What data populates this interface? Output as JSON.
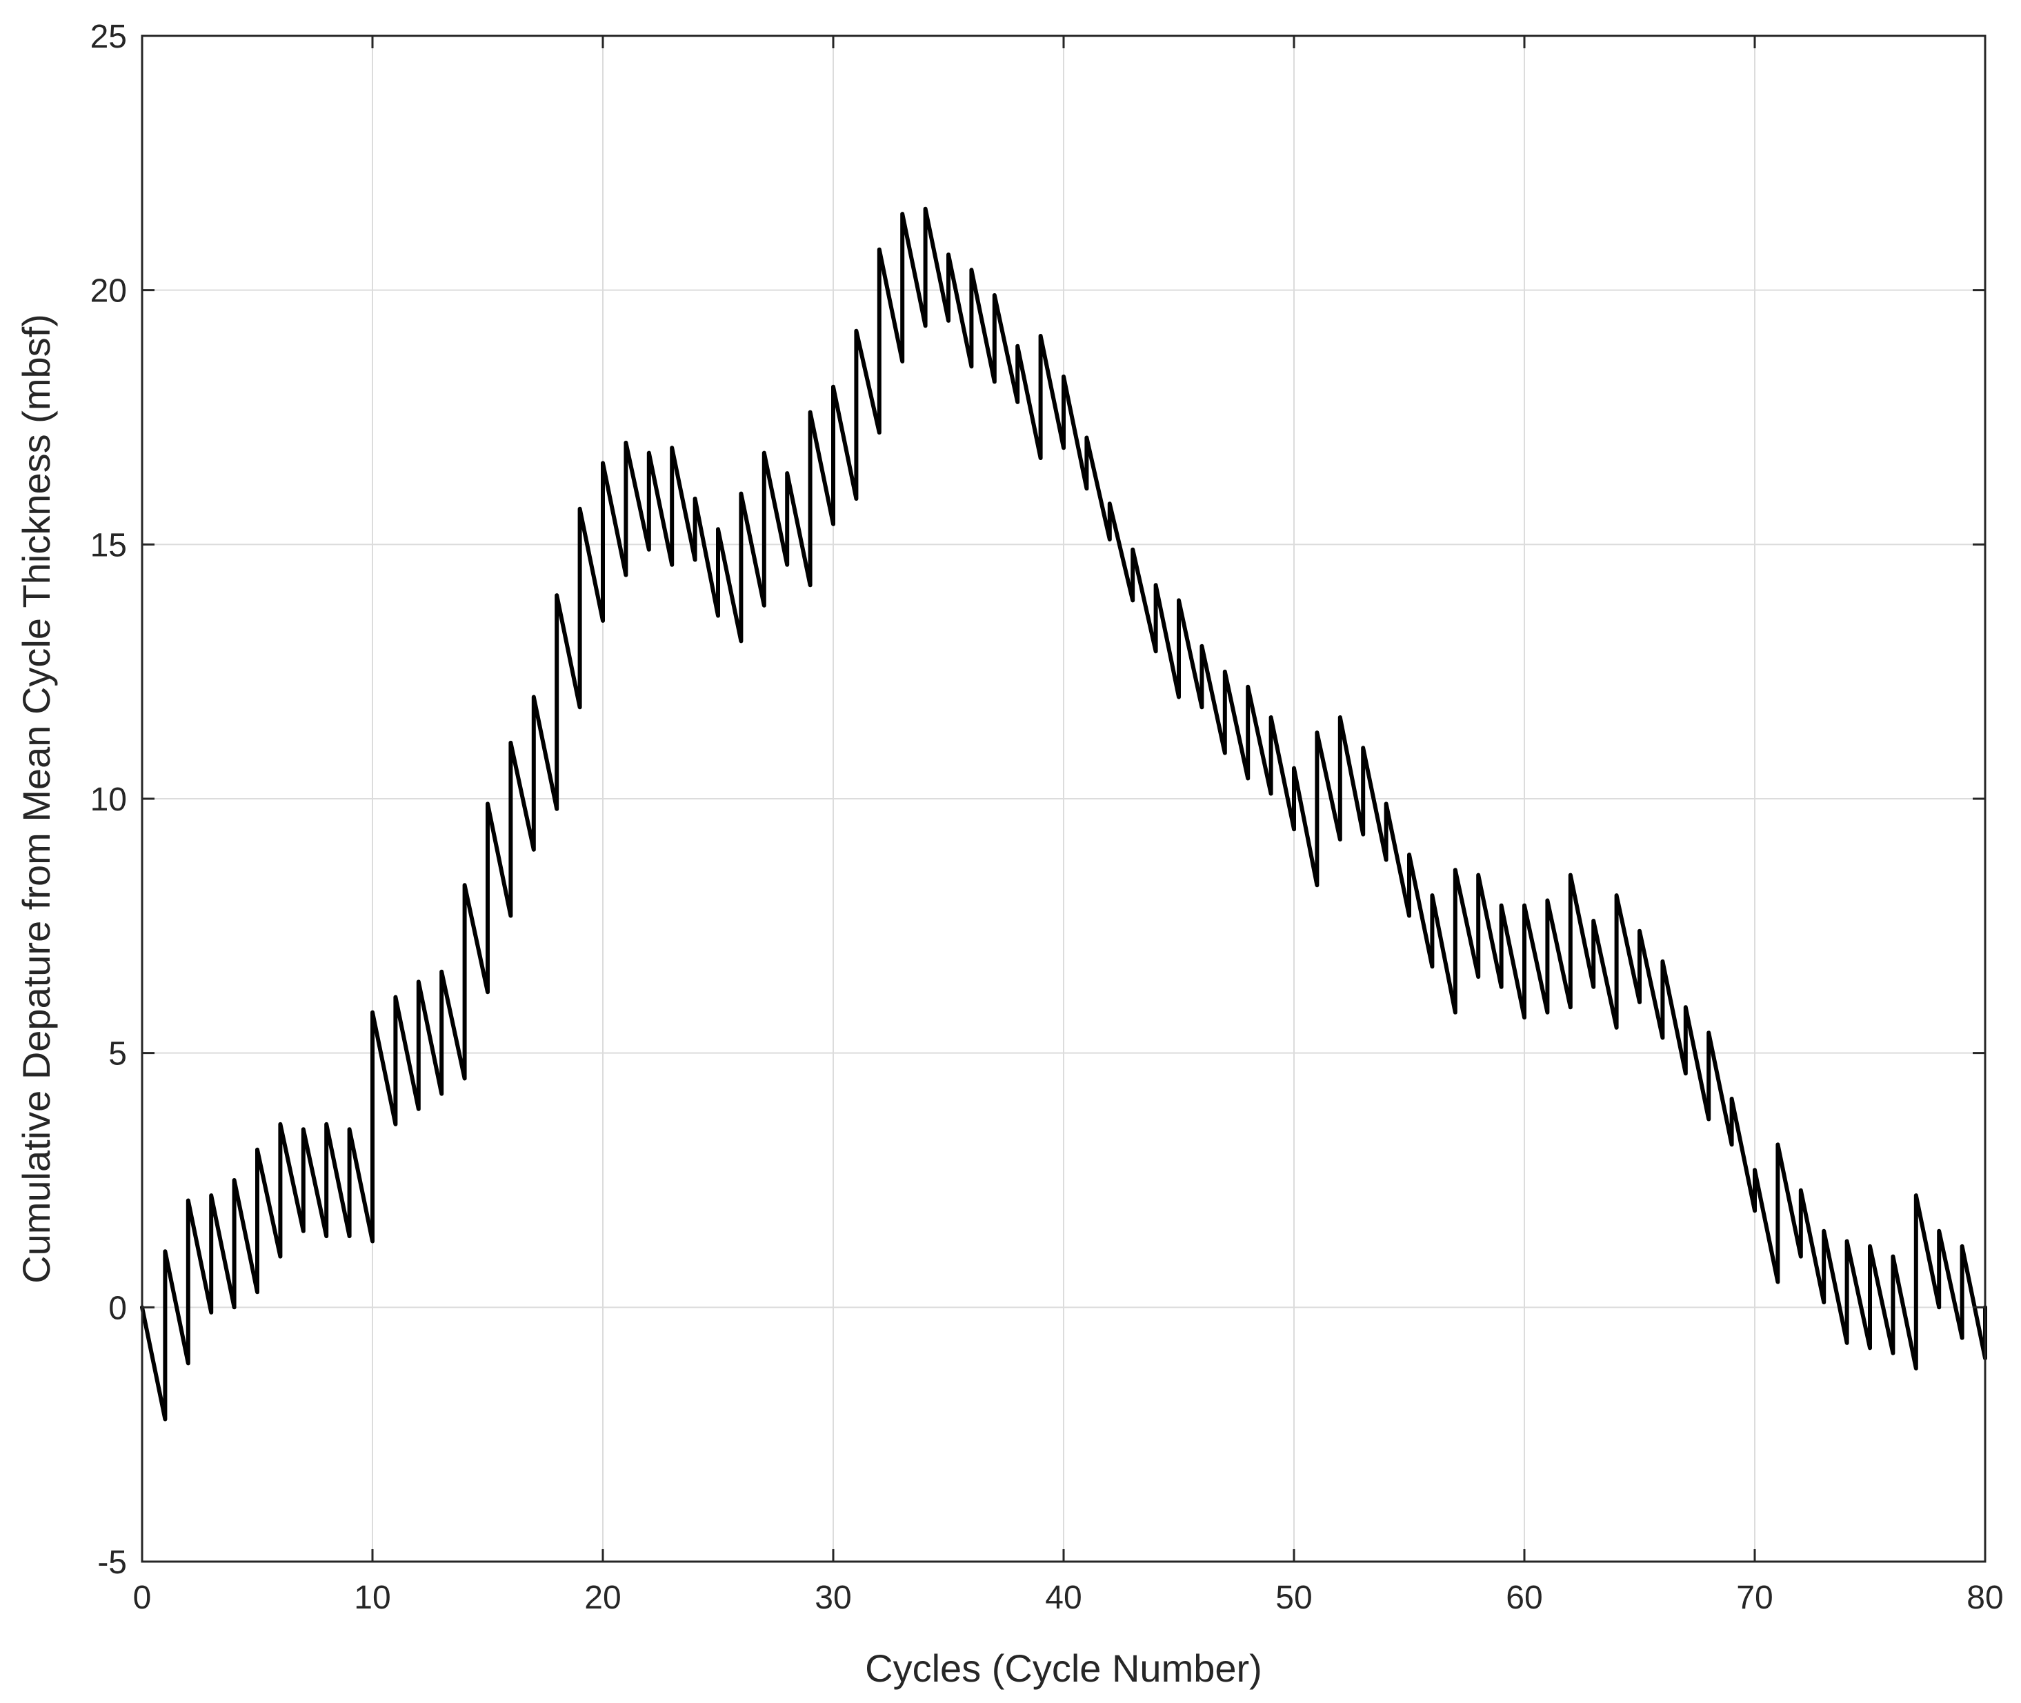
{
  "chart_data": {
    "type": "line",
    "title": "",
    "xlabel": "Cycles (Cycle Number)",
    "ylabel": "Cumulative Depature from Mean Cycle Thickness (mbsf)",
    "xlim": [
      0,
      80
    ],
    "ylim": [
      -5,
      25
    ],
    "xticks": [
      0,
      10,
      20,
      30,
      40,
      50,
      60,
      70,
      80
    ],
    "yticks": [
      -5,
      0,
      5,
      10,
      15,
      20,
      25
    ],
    "grid": true,
    "line_color": "#000000",
    "grid_color": "#dcdcdc",
    "series": [
      {
        "values_x": [
          0,
          1,
          1,
          2,
          2,
          3,
          3,
          4,
          4,
          5,
          5,
          6,
          6,
          7,
          7,
          8,
          8,
          9,
          9,
          10,
          10,
          11,
          11,
          12,
          12,
          13,
          13,
          14,
          14,
          15,
          15,
          16,
          16,
          17,
          17,
          18,
          18,
          19,
          19,
          20,
          20,
          21,
          21,
          22,
          22,
          23,
          23,
          24,
          24,
          25,
          25,
          26,
          26,
          27,
          27,
          28,
          28,
          29,
          29,
          30,
          30,
          31,
          31,
          32,
          32,
          33,
          33,
          34,
          34,
          35,
          35,
          36,
          36,
          37,
          37,
          38,
          38,
          39,
          39,
          40,
          40,
          41,
          41,
          42,
          42,
          43,
          43,
          44,
          44,
          45,
          45,
          46,
          46,
          47,
          47,
          48,
          48,
          49,
          49,
          50,
          50,
          51,
          51,
          52,
          52,
          53,
          53,
          54,
          54,
          55,
          55,
          56,
          56,
          57,
          57,
          58,
          58,
          59,
          59,
          60,
          60,
          61,
          61,
          62,
          62,
          63,
          63,
          64,
          64,
          65,
          65,
          66,
          66,
          67,
          67,
          68,
          68,
          69,
          69,
          70,
          70,
          71,
          71,
          72,
          72,
          73,
          73,
          74,
          74,
          75,
          75,
          76,
          76,
          77,
          77,
          78,
          78,
          79,
          79,
          80,
          80
        ],
        "values_y": [
          0,
          -2.2,
          1.1,
          -1.1,
          2.1,
          -0.1,
          2.2,
          0,
          2.5,
          0.3,
          3.1,
          1,
          3.6,
          1.5,
          3.5,
          1.4,
          3.6,
          1.4,
          3.5,
          1.3,
          5.8,
          3.6,
          6.1,
          3.9,
          6.4,
          4.2,
          6.6,
          4.5,
          8.3,
          6.2,
          9.9,
          7.7,
          11.1,
          9,
          12,
          9.8,
          14,
          11.8,
          15.7,
          13.5,
          16.6,
          14.4,
          17,
          14.9,
          16.8,
          14.6,
          16.9,
          14.7,
          15.9,
          13.6,
          15.3,
          13.1,
          16,
          13.8,
          16.8,
          14.6,
          16.4,
          14.2,
          17.6,
          15.4,
          18.1,
          15.9,
          19.2,
          17.2,
          20.8,
          18.6,
          21.5,
          19.3,
          21.6,
          19.4,
          20.7,
          18.5,
          20.4,
          18.2,
          19.9,
          17.8,
          18.9,
          16.7,
          19.1,
          16.9,
          18.3,
          16.1,
          17.1,
          15.1,
          15.8,
          13.9,
          14.9,
          12.9,
          14.2,
          12,
          13.9,
          11.8,
          13,
          10.9,
          12.5,
          10.4,
          12.2,
          10.1,
          11.6,
          9.4,
          10.6,
          8.3,
          11.3,
          9.2,
          11.6,
          9.3,
          11,
          8.8,
          9.9,
          7.7,
          8.9,
          6.7,
          8.1,
          5.8,
          8.6,
          6.5,
          8.5,
          6.3,
          7.9,
          5.7,
          7.9,
          5.8,
          8,
          5.9,
          8.5,
          6.3,
          7.6,
          5.5,
          8.1,
          6,
          7.4,
          5.3,
          6.8,
          4.6,
          5.9,
          3.7,
          5.4,
          3.2,
          4.1,
          1.9,
          2.7,
          0.5,
          3.2,
          1,
          2.3,
          0.1,
          1.5,
          -0.7,
          1.3,
          -0.8,
          1.2,
          -0.9,
          1,
          -1.2,
          2.2,
          0,
          1.5,
          -0.6,
          1.2,
          -1,
          0
        ]
      }
    ]
  }
}
